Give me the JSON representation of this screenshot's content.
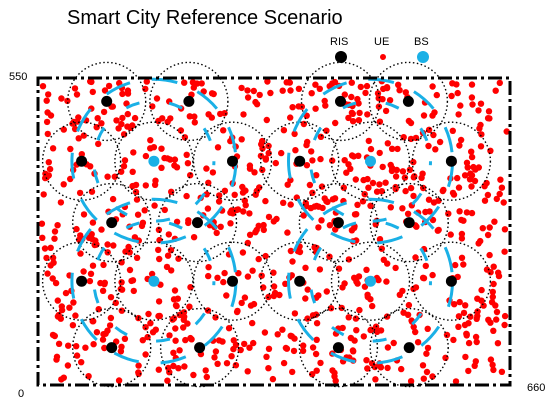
{
  "title": "Smart City Reference Scenario",
  "legend": {
    "ris_label": "RIS",
    "ue_label": "UE",
    "bs_label": "BS"
  },
  "axes": {
    "y_top_label": "550",
    "y_bottom_label": "0",
    "x_right_label": "660"
  },
  "colors": {
    "ris": "#000000",
    "ue": "#ff0000",
    "bs": "#1ab0e6",
    "cell_border": "#000000",
    "coverage_arc": "#1ab0e6"
  },
  "chart_data": {
    "type": "scatter",
    "xlim": [
      0,
      660
    ],
    "ylim": [
      0,
      550
    ],
    "ris": [
      [
        96,
        508
      ],
      [
        211,
        508
      ],
      [
        423,
        508
      ],
      [
        518,
        508
      ],
      [
        61,
        401
      ],
      [
        272,
        401
      ],
      [
        366,
        401
      ],
      [
        578,
        401
      ],
      [
        103,
        291
      ],
      [
        223,
        291
      ],
      [
        420,
        291
      ],
      [
        519,
        291
      ],
      [
        61,
        186
      ],
      [
        272,
        186
      ],
      [
        366,
        186
      ],
      [
        578,
        186
      ],
      [
        103,
        67
      ],
      [
        226,
        67
      ],
      [
        420,
        67
      ],
      [
        519,
        67
      ]
    ],
    "bs": [
      [
        162,
        401
      ],
      [
        465,
        401
      ],
      [
        162,
        186
      ],
      [
        465,
        186
      ]
    ],
    "ue_count": 900
  }
}
